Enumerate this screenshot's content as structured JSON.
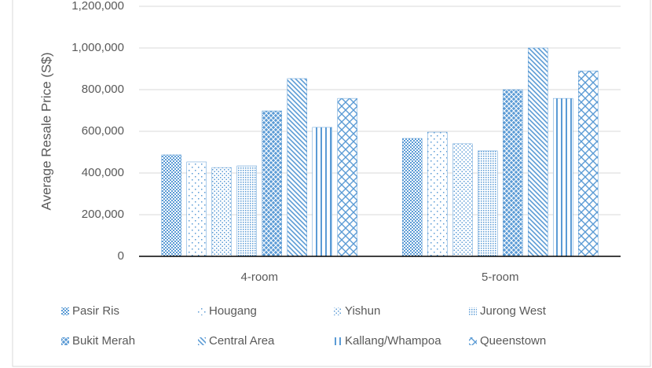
{
  "chart_data": {
    "type": "bar",
    "y_label": "Average Resale Price (S$)",
    "categories": [
      "4-room",
      "5-room"
    ],
    "series": [
      {
        "name": "Pasir Ris",
        "color": "#5b9bd5",
        "pattern": "checker",
        "values": [
          487000,
          566000
        ]
      },
      {
        "name": "Hougang",
        "color": "#5b9bd5",
        "pattern": "sparse-dots",
        "values": [
          453000,
          596000
        ]
      },
      {
        "name": "Yishun",
        "color": "#5b9bd5",
        "pattern": "small-dots",
        "values": [
          426000,
          540000
        ]
      },
      {
        "name": "Jurong West",
        "color": "#5b9bd5",
        "pattern": "grid-dots",
        "values": [
          434000,
          506000
        ]
      },
      {
        "name": "Bukit Merah",
        "color": "#5b9bd5",
        "pattern": "diag-cross",
        "values": [
          698000,
          800000
        ]
      },
      {
        "name": "Central Area",
        "color": "#5b9bd5",
        "pattern": "diag-lines",
        "values": [
          853000,
          1000000
        ]
      },
      {
        "name": "Kallang/Whampoa",
        "color": "#5b9bd5",
        "pattern": "vertical",
        "values": [
          619000,
          758000
        ]
      },
      {
        "name": "Queenstown",
        "color": "#5b9bd5",
        "pattern": "wide-cross",
        "values": [
          758000,
          890000
        ]
      }
    ],
    "ylim": [
      0,
      1200000
    ],
    "yticks": [
      0,
      {
        "value": 200000,
        "label": "200,000"
      },
      {
        "value": 400000,
        "label": "400,000"
      },
      {
        "value": 600000,
        "label": "600,000"
      },
      {
        "value": 800000,
        "label": "800,000"
      },
      {
        "value": 1000000,
        "label": "1,000,000"
      },
      {
        "value": 1200000,
        "label": "1,200,000"
      }
    ],
    "grid": true
  }
}
